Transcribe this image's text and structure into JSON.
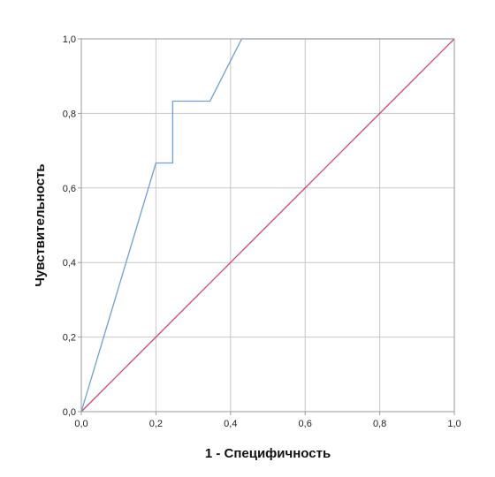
{
  "chart_data": {
    "type": "line",
    "xlabel": "1 - Специфичность",
    "ylabel": "Чувствительность",
    "xlim": [
      0,
      1
    ],
    "ylim": [
      0,
      1
    ],
    "grid": true,
    "x_ticks": [
      "0,0",
      "0,2",
      "0,4",
      "0,6",
      "0,8",
      "1,0"
    ],
    "y_ticks": [
      "0,0",
      "0,2",
      "0,4",
      "0,6",
      "0,8",
      "1,0"
    ],
    "series": [
      {
        "color": "#6aa0d8",
        "x": [
          0.0,
          0.2,
          0.245,
          0.245,
          0.345,
          0.43,
          1.0
        ],
        "y": [
          0.0,
          0.667,
          0.667,
          0.833,
          0.833,
          1.0,
          1.0
        ]
      },
      {
        "color": "#c8456c",
        "x": [
          0.0,
          1.0
        ],
        "y": [
          0.0,
          1.0
        ]
      }
    ]
  }
}
